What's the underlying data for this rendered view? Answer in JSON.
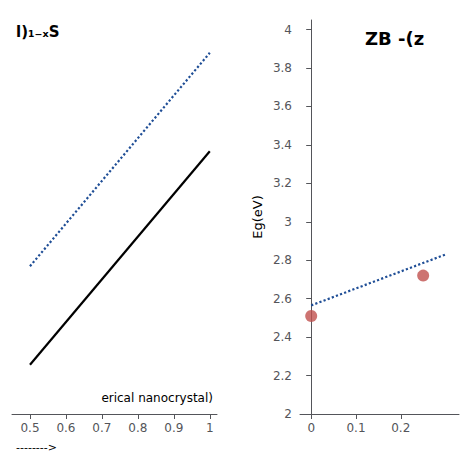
{
  "chart_data": [
    {
      "type": "line",
      "annotations": [
        "l)₁₋ₓS",
        "erical nanocrystal)",
        "-------->"
      ],
      "series": [
        {
          "type": "line",
          "line_style": "solid",
          "color": "#000000",
          "x": [
            0.5,
            1.0
          ],
          "values": [
            3.5,
            4.8
          ]
        },
        {
          "type": "line",
          "line_style": "dotted",
          "color": "#1f4e96",
          "x": [
            0.5,
            1.0
          ],
          "values": [
            4.1,
            5.4
          ]
        }
      ],
      "xlim": [
        0.45,
        1.02
      ],
      "xticks": [
        0.5,
        0.6,
        0.7,
        0.8,
        0.9,
        1
      ],
      "ylim": [
        3.2,
        5.6
      ],
      "tick_labels": "x",
      "grid": false
    },
    {
      "type": "scatter",
      "title": "ZB -(z",
      "ylabel": "Eg(eV)",
      "series": [
        {
          "type": "line",
          "line_style": "dotted",
          "color": "#1f4e96",
          "x": [
            0.0,
            0.3
          ],
          "values": [
            2.565,
            2.83
          ]
        },
        {
          "type": "scatter",
          "marker": "circle",
          "color": "#c0504d",
          "x": [
            0.0,
            0.25
          ],
          "values": [
            2.51,
            2.72
          ]
        }
      ],
      "xlim": [
        -0.025,
        0.33
      ],
      "xticks": [
        0,
        0.1,
        0.2
      ],
      "ylim": [
        2.0,
        4.05
      ],
      "yticks": [
        2,
        2.2,
        2.4,
        2.6,
        2.8,
        3,
        3.2,
        3.4,
        3.6,
        3.8,
        4
      ],
      "grid": false
    }
  ]
}
